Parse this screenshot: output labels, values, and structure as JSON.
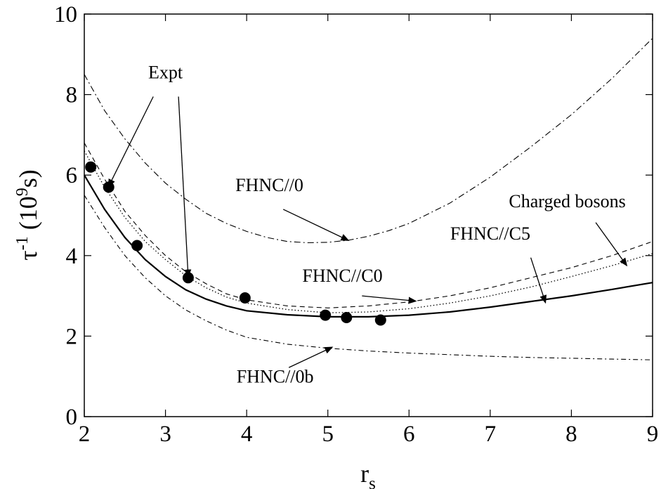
{
  "chart_data": {
    "type": "line",
    "xlabel": "r",
    "xlabel_sub": "s",
    "ylabel": "τ",
    "ylabel_sup": "-1",
    "ylabel_rest": "(10",
    "ylabel_sup2": "9",
    "ylabel_end": "s)",
    "xlim": [
      2,
      9
    ],
    "ylim": [
      0,
      10
    ],
    "xticks": [
      2,
      3,
      4,
      5,
      6,
      7,
      8,
      9
    ],
    "yticks": [
      0,
      2,
      4,
      6,
      8,
      10
    ],
    "grid": false,
    "legend": "none",
    "series": [
      {
        "id": "fhnc0",
        "style": "dashdot-long",
        "points": [
          [
            2.0,
            8.5
          ],
          [
            2.25,
            7.6
          ],
          [
            2.5,
            6.9
          ],
          [
            2.75,
            6.3
          ],
          [
            3.0,
            5.8
          ],
          [
            3.25,
            5.4
          ],
          [
            3.5,
            5.05
          ],
          [
            3.75,
            4.8
          ],
          [
            4.0,
            4.6
          ],
          [
            4.25,
            4.45
          ],
          [
            4.5,
            4.35
          ],
          [
            4.75,
            4.32
          ],
          [
            5.0,
            4.33
          ],
          [
            5.25,
            4.38
          ],
          [
            5.5,
            4.48
          ],
          [
            5.75,
            4.62
          ],
          [
            6.0,
            4.8
          ],
          [
            6.5,
            5.3
          ],
          [
            7.0,
            5.95
          ],
          [
            7.5,
            6.7
          ],
          [
            8.0,
            7.5
          ],
          [
            8.5,
            8.4
          ],
          [
            9.0,
            9.4
          ]
        ]
      },
      {
        "id": "fhncc0",
        "style": "dashed",
        "points": [
          [
            2.0,
            6.8
          ],
          [
            2.25,
            5.9
          ],
          [
            2.5,
            5.1
          ],
          [
            2.75,
            4.5
          ],
          [
            3.0,
            4.0
          ],
          [
            3.25,
            3.6
          ],
          [
            3.5,
            3.3
          ],
          [
            3.75,
            3.05
          ],
          [
            4.0,
            2.9
          ],
          [
            4.5,
            2.75
          ],
          [
            5.0,
            2.7
          ],
          [
            5.5,
            2.75
          ],
          [
            6.0,
            2.85
          ],
          [
            6.5,
            3.0
          ],
          [
            7.0,
            3.2
          ],
          [
            7.5,
            3.45
          ],
          [
            8.0,
            3.7
          ],
          [
            8.5,
            4.0
          ],
          [
            9.0,
            4.35
          ]
        ]
      },
      {
        "id": "fhncc5",
        "style": "dotted",
        "points": [
          [
            2.0,
            6.6
          ],
          [
            2.25,
            5.7
          ],
          [
            2.5,
            4.95
          ],
          [
            2.75,
            4.35
          ],
          [
            3.0,
            3.9
          ],
          [
            3.25,
            3.5
          ],
          [
            3.5,
            3.2
          ],
          [
            3.75,
            2.97
          ],
          [
            4.0,
            2.82
          ],
          [
            4.5,
            2.66
          ],
          [
            5.0,
            2.58
          ],
          [
            5.5,
            2.6
          ],
          [
            6.0,
            2.68
          ],
          [
            6.5,
            2.82
          ],
          [
            7.0,
            3.0
          ],
          [
            7.5,
            3.22
          ],
          [
            8.0,
            3.48
          ],
          [
            8.5,
            3.75
          ],
          [
            9.0,
            4.05
          ]
        ]
      },
      {
        "id": "bosons",
        "style": "solid",
        "points": [
          [
            2.0,
            6.0
          ],
          [
            2.25,
            5.15
          ],
          [
            2.5,
            4.45
          ],
          [
            2.75,
            3.9
          ],
          [
            3.0,
            3.48
          ],
          [
            3.25,
            3.15
          ],
          [
            3.5,
            2.92
          ],
          [
            3.75,
            2.75
          ],
          [
            4.0,
            2.63
          ],
          [
            4.5,
            2.53
          ],
          [
            5.0,
            2.48
          ],
          [
            5.5,
            2.48
          ],
          [
            6.0,
            2.52
          ],
          [
            6.5,
            2.6
          ],
          [
            7.0,
            2.72
          ],
          [
            7.5,
            2.86
          ],
          [
            8.0,
            3.0
          ],
          [
            8.5,
            3.16
          ],
          [
            9.0,
            3.33
          ]
        ]
      },
      {
        "id": "fhnc0b",
        "style": "dashdot-short",
        "points": [
          [
            2.0,
            5.5
          ],
          [
            2.25,
            4.7
          ],
          [
            2.5,
            4.0
          ],
          [
            2.75,
            3.45
          ],
          [
            3.0,
            3.0
          ],
          [
            3.25,
            2.65
          ],
          [
            3.5,
            2.38
          ],
          [
            3.75,
            2.15
          ],
          [
            4.0,
            1.97
          ],
          [
            4.5,
            1.8
          ],
          [
            5.0,
            1.7
          ],
          [
            5.5,
            1.63
          ],
          [
            6.0,
            1.58
          ],
          [
            6.5,
            1.54
          ],
          [
            7.0,
            1.5
          ],
          [
            7.5,
            1.47
          ],
          [
            8.0,
            1.45
          ],
          [
            8.5,
            1.43
          ],
          [
            9.0,
            1.41
          ]
        ]
      }
    ],
    "points": {
      "name": "Expt",
      "x": [
        2.08,
        2.3,
        2.65,
        3.28,
        3.98,
        4.97,
        5.23,
        5.65
      ],
      "y": [
        6.2,
        5.7,
        4.25,
        3.45,
        2.95,
        2.52,
        2.46,
        2.4
      ]
    },
    "annotations": [
      {
        "id": "expt",
        "text": "Expt",
        "x": 3.0,
        "y": 8.4,
        "anchor": "middle",
        "arrows": [
          {
            "from": [
              2.85,
              7.95
            ],
            "to": [
              2.3,
              5.72
            ]
          },
          {
            "from": [
              3.16,
              7.95
            ],
            "to": [
              3.28,
              3.48
            ]
          }
        ]
      },
      {
        "id": "fhnc0",
        "text": "FHNC//0",
        "x": 4.28,
        "y": 5.6,
        "anchor": "middle",
        "arrows": [
          {
            "from": [
              4.45,
              5.15
            ],
            "to": [
              5.25,
              4.38
            ]
          }
        ]
      },
      {
        "id": "fhncc0",
        "text": "FHNC//C0",
        "x": 5.18,
        "y": 3.35,
        "anchor": "middle",
        "arrows": [
          {
            "from": [
              5.42,
              3.0
            ],
            "to": [
              6.08,
              2.87
            ]
          }
        ]
      },
      {
        "id": "fhncc5",
        "text": "FHNC//C5",
        "x": 7.0,
        "y": 4.4,
        "anchor": "middle",
        "arrows": [
          {
            "from": [
              7.5,
              3.95
            ],
            "to": [
              7.68,
              2.84
            ]
          }
        ]
      },
      {
        "id": "bosons",
        "text": "Charged bosons",
        "x": 7.95,
        "y": 5.2,
        "anchor": "middle",
        "arrows": [
          {
            "from": [
              8.3,
              4.82
            ],
            "to": [
              8.68,
              3.76
            ]
          }
        ]
      },
      {
        "id": "fhnc0b",
        "text": "FHNC//0b",
        "x": 4.35,
        "y": 0.85,
        "anchor": "middle",
        "arrows": [
          {
            "from": [
              4.52,
              1.22
            ],
            "to": [
              5.05,
              1.72
            ]
          }
        ]
      }
    ]
  }
}
